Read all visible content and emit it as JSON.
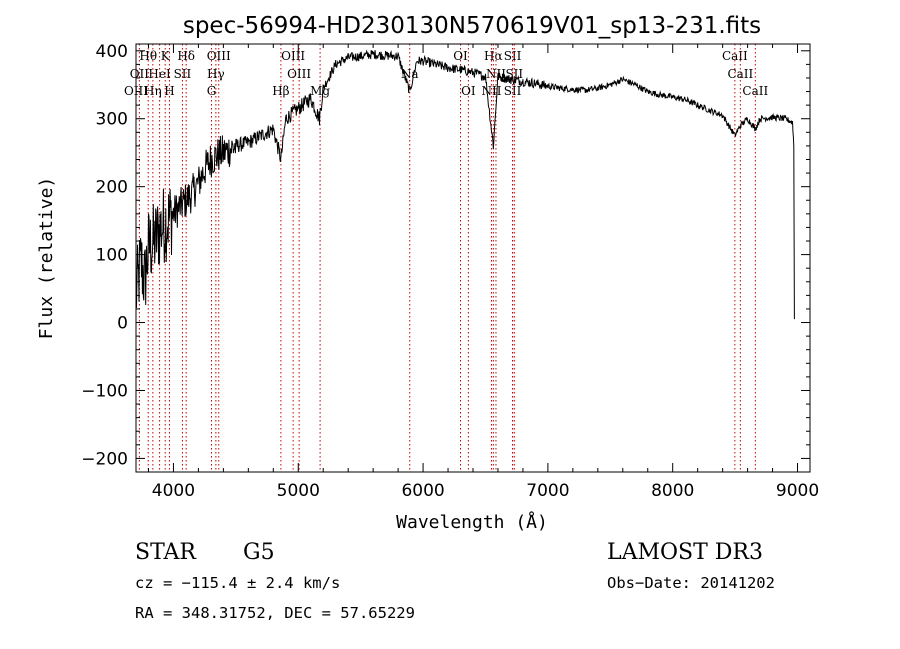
{
  "chart_data": {
    "type": "line",
    "title": "spec-56994-HD230130N570619V01_sp13-231.fits",
    "xlabel": "Wavelength (Å)",
    "ylabel": "Flux (relative)",
    "xlim": [
      3700,
      9100
    ],
    "ylim": [
      -220,
      410
    ],
    "xticks": [
      4000,
      5000,
      6000,
      7000,
      8000,
      9000
    ],
    "xtick_labels": [
      "4000",
      "5000",
      "6000",
      "7000",
      "8000",
      "9000"
    ],
    "yticks": [
      -200,
      -100,
      0,
      100,
      200,
      300,
      400
    ],
    "ytick_labels": [
      "−200",
      "−100",
      "0",
      "100",
      "200",
      "300",
      "400"
    ],
    "series": [
      {
        "name": "spectrum",
        "x": [
          3700,
          3740,
          3770,
          3800,
          3850,
          3900,
          3950,
          4000,
          4050,
          4100,
          4150,
          4180,
          4200,
          4250,
          4300,
          4340,
          4400,
          4500,
          4600,
          4700,
          4800,
          4861,
          4900,
          5000,
          5100,
          5170,
          5200,
          5300,
          5400,
          5500,
          5600,
          5700,
          5800,
          5893,
          5950,
          6000,
          6100,
          6200,
          6300,
          6400,
          6500,
          6563,
          6600,
          6700,
          6800,
          6900,
          7000,
          7100,
          7200,
          7300,
          7400,
          7500,
          7600,
          7700,
          7800,
          7900,
          8000,
          8100,
          8200,
          8300,
          8400,
          8498,
          8542,
          8600,
          8662,
          8700,
          8800,
          8900,
          8960,
          8970,
          8975
        ],
        "y": [
          40,
          90,
          60,
          110,
          120,
          140,
          150,
          160,
          170,
          180,
          190,
          200,
          205,
          225,
          240,
          245,
          250,
          260,
          265,
          275,
          285,
          240,
          300,
          315,
          330,
          300,
          345,
          380,
          390,
          392,
          395,
          393,
          392,
          340,
          385,
          385,
          380,
          375,
          372,
          368,
          362,
          260,
          362,
          358,
          355,
          352,
          348,
          345,
          343,
          342,
          345,
          350,
          358,
          350,
          340,
          335,
          332,
          328,
          320,
          312,
          305,
          275,
          290,
          300,
          285,
          300,
          302,
          300,
          295,
          260,
          5
        ]
      }
    ],
    "spectral_lines": [
      {
        "label": "Hθ",
        "wavelength": 3798,
        "row": 0
      },
      {
        "label": "K",
        "wavelength": 3934,
        "row": 0
      },
      {
        "label": "Hδ",
        "wavelength": 4102,
        "row": 0
      },
      {
        "label": "OIII",
        "wavelength": 4363,
        "row": 0
      },
      {
        "label": "OIII",
        "wavelength": 4959,
        "row": 0
      },
      {
        "label": "OI",
        "wavelength": 6300,
        "row": 0
      },
      {
        "label": "Hα",
        "wavelength": 6563,
        "row": 0
      },
      {
        "label": "SII",
        "wavelength": 6717,
        "row": 0
      },
      {
        "label": "CaII",
        "wavelength": 8498,
        "row": 0
      },
      {
        "label": "OII",
        "wavelength": 3727,
        "row": 1
      },
      {
        "label": "HeI",
        "wavelength": 3889,
        "row": 1
      },
      {
        "label": "SII",
        "wavelength": 4072,
        "row": 1
      },
      {
        "label": "Hγ",
        "wavelength": 4340,
        "row": 1
      },
      {
        "label": "OIII",
        "wavelength": 5007,
        "row": 1
      },
      {
        "label": "Na",
        "wavelength": 5893,
        "row": 1
      },
      {
        "label": "NII",
        "wavelength": 6584,
        "row": 1
      },
      {
        "label": "SII",
        "wavelength": 6731,
        "row": 1
      },
      {
        "label": "CaII",
        "wavelength": 8542,
        "row": 1
      },
      {
        "label": "OIII",
        "wavelength": 3700,
        "row": 2
      },
      {
        "label": "Hη",
        "wavelength": 3835,
        "row": 2
      },
      {
        "label": "H",
        "wavelength": 3968,
        "row": 2
      },
      {
        "label": "G",
        "wavelength": 4305,
        "row": 2
      },
      {
        "label": "Hβ",
        "wavelength": 4861,
        "row": 2
      },
      {
        "label": "Mg",
        "wavelength": 5175,
        "row": 2
      },
      {
        "label": "OI",
        "wavelength": 6363,
        "row": 2
      },
      {
        "label": "NII",
        "wavelength": 6548,
        "row": 2
      },
      {
        "label": "SII",
        "wavelength": 6717,
        "row": 2
      },
      {
        "label": "CaII",
        "wavelength": 8662,
        "row": 2
      }
    ]
  },
  "info": {
    "object_class": "STAR",
    "subclass": "G5",
    "survey": "LAMOST DR3",
    "cz": "cz = −115.4 ± 2.4 km/s",
    "obs_date": "Obs−Date: 20141202",
    "coords": "RA = 348.31752, DEC =  57.65229"
  },
  "colors": {
    "line_markers": "#cc0000",
    "spectrum": "#000000"
  }
}
